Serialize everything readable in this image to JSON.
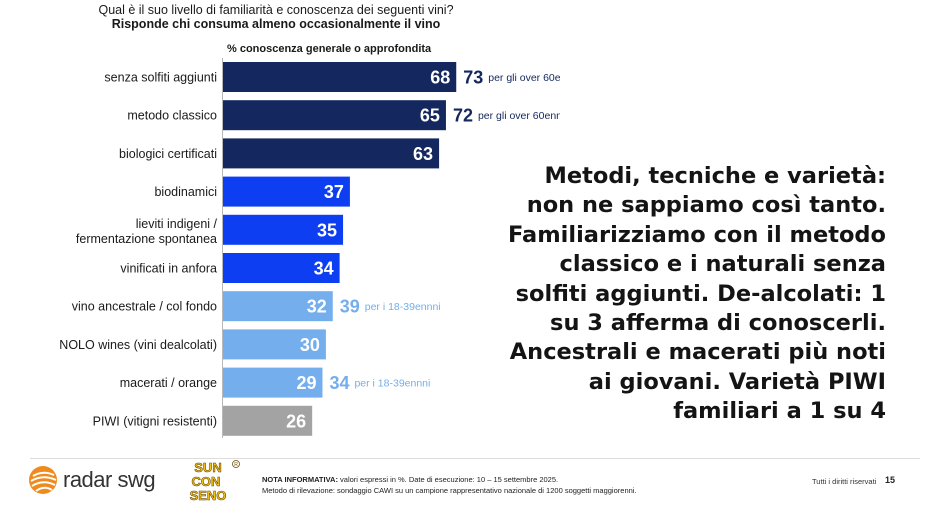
{
  "question": "Qual è il suo livello di familiarità e conoscenza dei seguenti vini?",
  "subtitle": "Risponde chi consuma almeno occasionalmente il vino",
  "chart_data": {
    "type": "bar",
    "orientation": "horizontal",
    "title": "% conoscenza generale o approfondita",
    "xlim": [
      0,
      100
    ],
    "categories": [
      "senza solfiti aggiunti",
      "metodo classico",
      "biologici certificati",
      "biodinamici",
      "lieviti indigeni / fermentazione spontanea",
      "vinificati in anfora",
      "vino ancestrale / col fondo",
      "NOLO wines (vini dealcolati)",
      "macerati / orange",
      "PIWI (vitigni resistenti)"
    ],
    "values": [
      68,
      65,
      63,
      37,
      35,
      34,
      32,
      30,
      29,
      26
    ],
    "bar_colors": [
      "#14275e",
      "#14275e",
      "#14275e",
      "#0d3ef2",
      "#0d3ef2",
      "#0d3ef2",
      "#74aeec",
      "#74aeec",
      "#74aeec",
      "#a3a3a3"
    ],
    "annotations": [
      {
        "index": 0,
        "value": 73,
        "note": "per gli over 60enni",
        "color": "#14275e"
      },
      {
        "index": 1,
        "value": 72,
        "note": "per gli over 60enni",
        "color": "#14275e"
      },
      {
        "index": 6,
        "value": 39,
        "note": "per i 18-39ennni",
        "color": "#74aeec"
      },
      {
        "index": 8,
        "value": 34,
        "note": "per i 18-39ennni",
        "color": "#74aeec"
      }
    ]
  },
  "headline_lines": [
    "Metodi, tecniche e varietà:",
    "non ne sappiamo così tanto.",
    "Familiarizziamo con il metodo",
    "classico e i naturali senza",
    "solfiti aggiunti. De-alcolati: 1",
    "su 3 afferma di conoscerli.",
    "Ancestrali e macerati più noti",
    "ai giovani. Varietà PIWI",
    "familiari a 1 su 4"
  ],
  "footer": {
    "logo_text": "radar swg",
    "sun_logo_lines": [
      "SUN",
      "CON",
      "SENO"
    ],
    "nota_label": "NOTA INFORMATIVA:",
    "nota_text": " valori espressi in %. Date di esecuzione: 10 – 15 settembre 2025.",
    "metodo_text": "Metodo di rilevazione: sondaggio CAWI su un campione rappresentativo nazionale di 1200 soggetti maggiorenni.",
    "rights": "Tutti i diritti riservati",
    "page_number": "15",
    "colors": {
      "radar_orange": "#f08a1e",
      "sun_yellow": "#f2c21a"
    }
  }
}
